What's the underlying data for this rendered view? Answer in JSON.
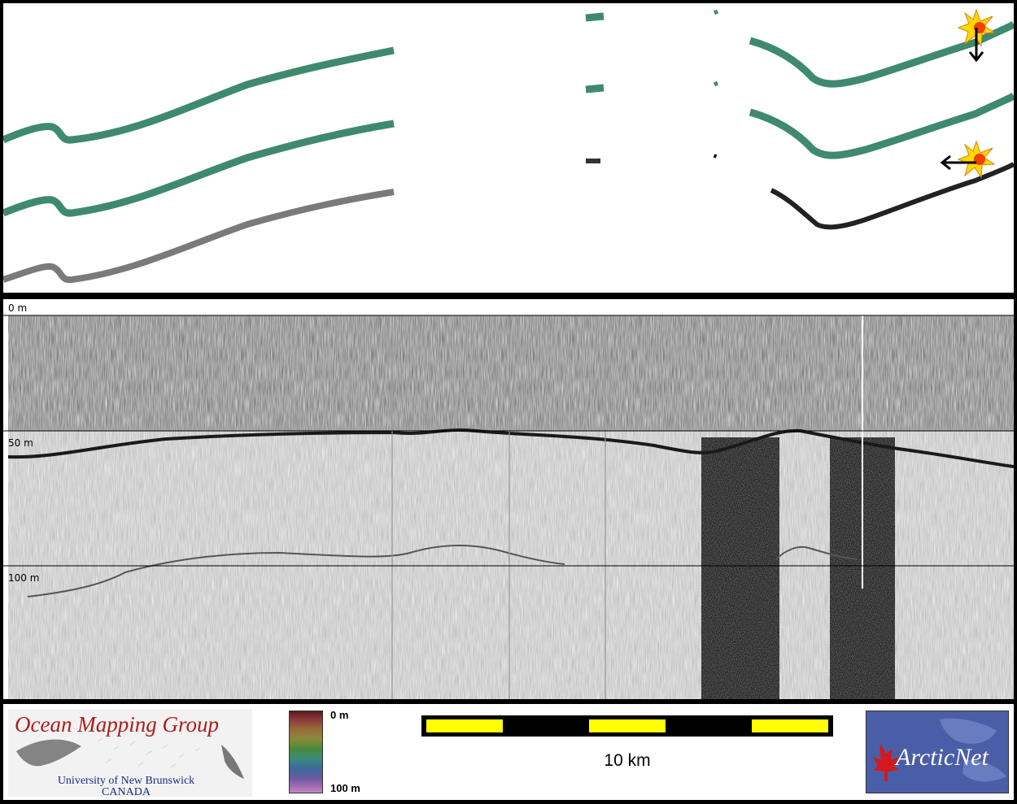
{
  "profile": {
    "depth_labels": [
      "0 m",
      "50 m",
      "100 m"
    ]
  },
  "legend": {
    "colorbar_top_label": "0 m",
    "colorbar_bottom_label": "100 m",
    "scale_label": "10 km"
  },
  "logos": {
    "omg_title": "Ocean Mapping Group",
    "omg_university": "University of New Brunswick",
    "omg_country": "CANADA",
    "arcticnet_text": "ArcticNet"
  },
  "icons": {
    "event_marker_1": "starburst-down-arrow-icon",
    "event_marker_2": "starburst-left-arrow-icon"
  },
  "colors": {
    "swath_green": "#3f8a6e",
    "swath_gray": "#7a7a7a",
    "scale_yellow": "#ffff00",
    "omg_red": "#b01c1c",
    "arcticnet_blue": "#4a5ea8"
  }
}
